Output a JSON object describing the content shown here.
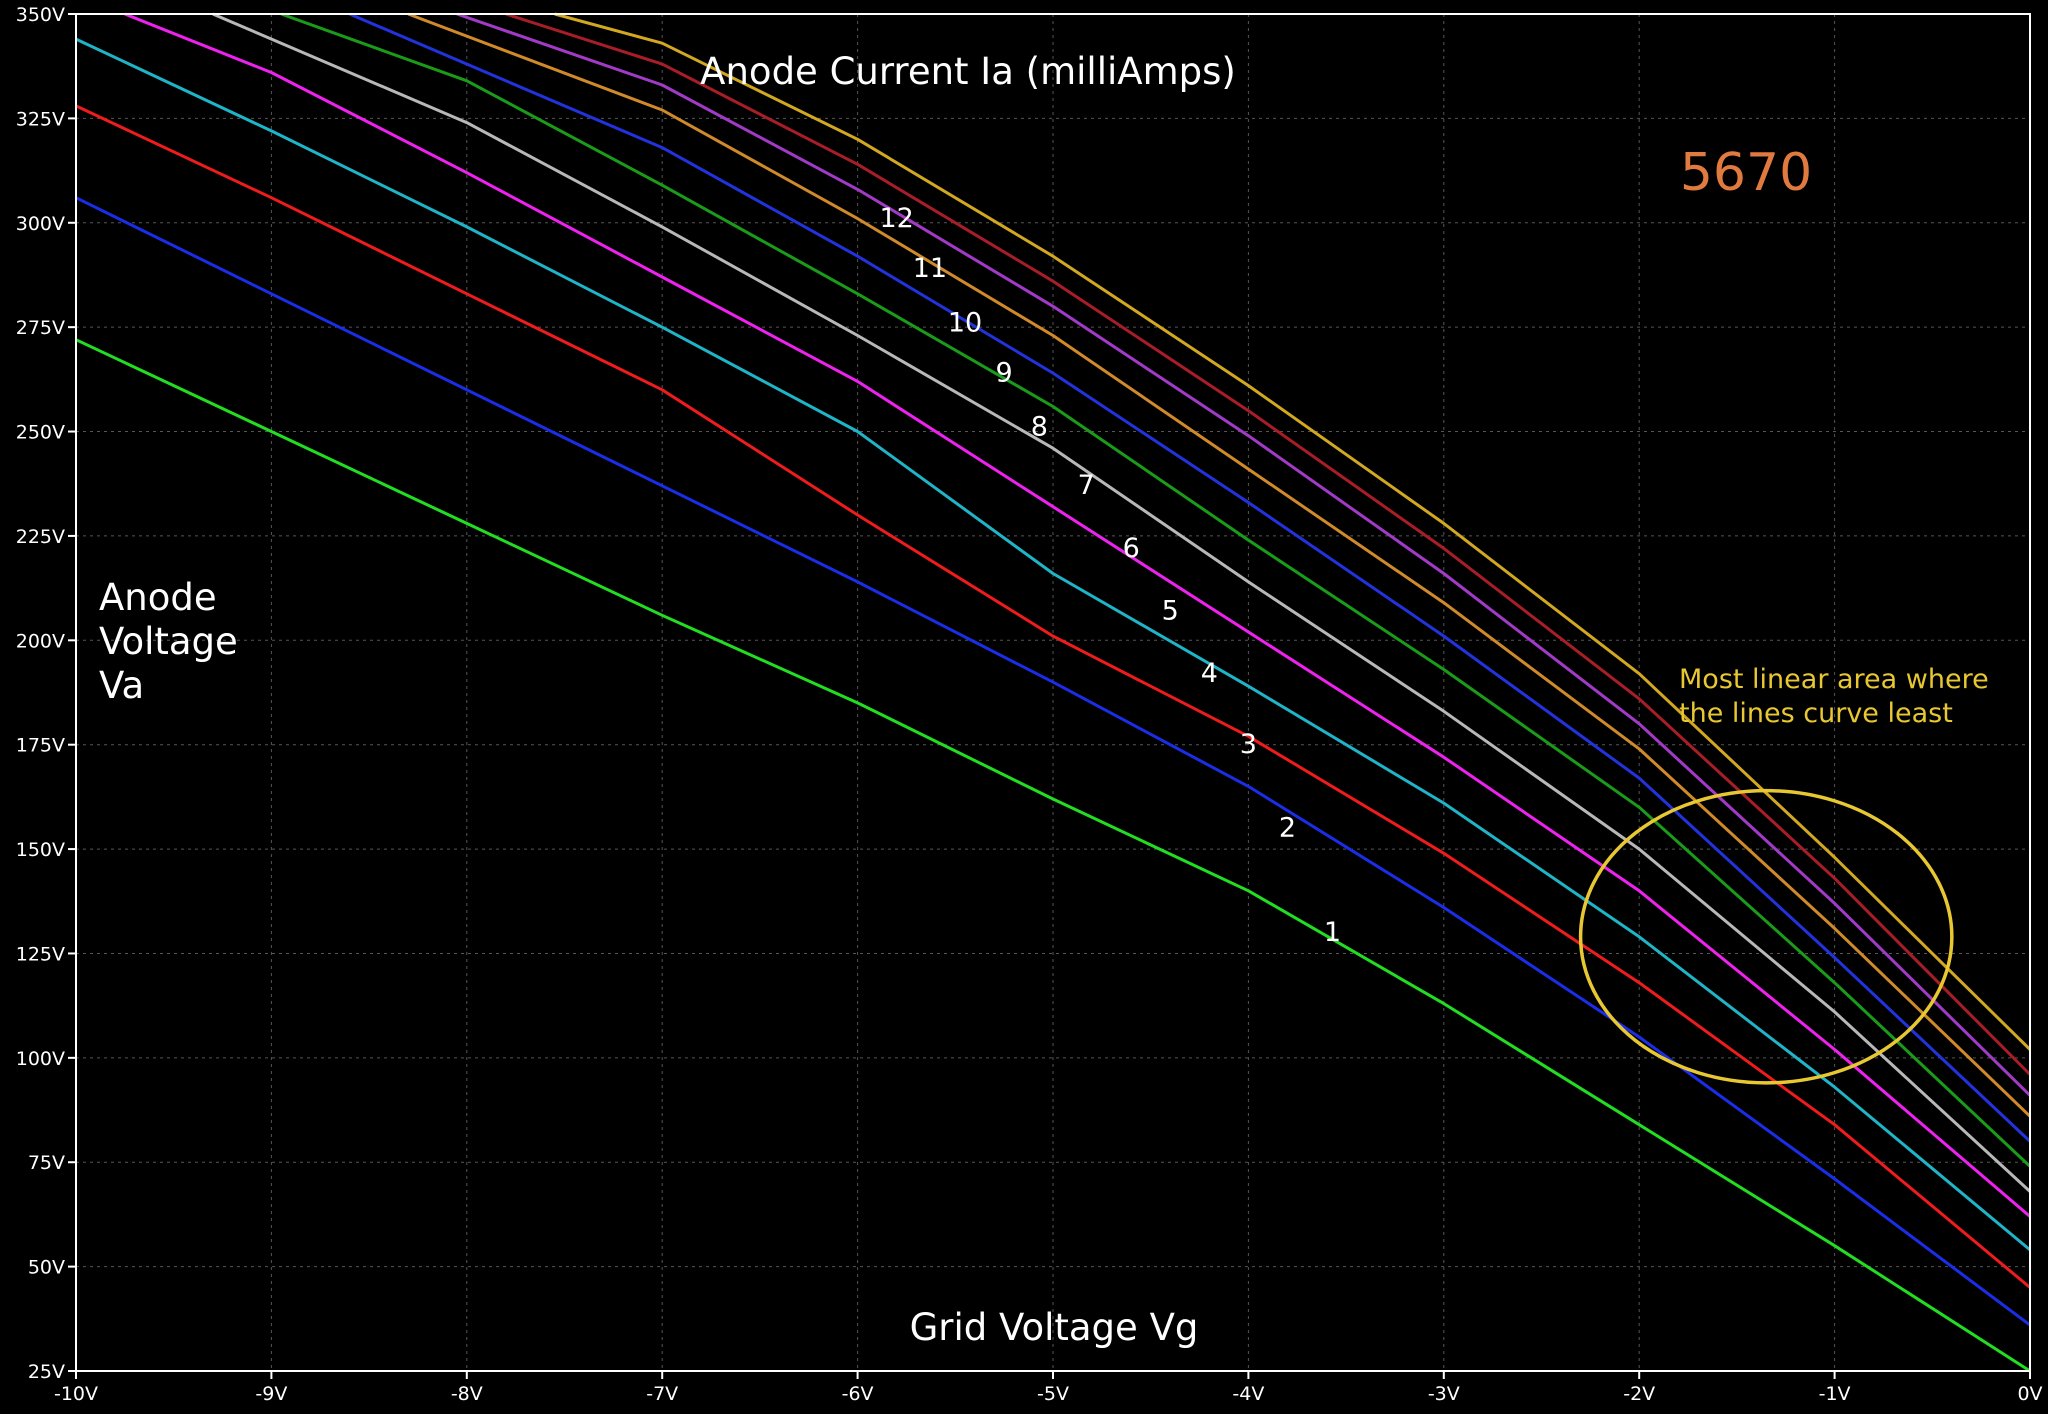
{
  "chart_data": {
    "type": "line",
    "title": "Anode Current Ia (milliAmps)",
    "xlabel": "Grid Voltage Vg",
    "ylabel_lines": [
      "Anode",
      "Voltage",
      "Va"
    ],
    "xlim": [
      -10,
      0
    ],
    "ylim": [
      25,
      350
    ],
    "x_ticks": [
      -10,
      -9,
      -8,
      -7,
      -6,
      -5,
      -4,
      -3,
      -2,
      -1,
      0
    ],
    "x_tick_labels": [
      "-10V",
      "-9V",
      "-8V",
      "-7V",
      "-6V",
      "-5V",
      "-4V",
      "-3V",
      "-2V",
      "-1V",
      "0V"
    ],
    "y_ticks": [
      25,
      50,
      75,
      100,
      125,
      150,
      175,
      200,
      225,
      250,
      275,
      300,
      325,
      350
    ],
    "y_tick_labels": [
      "25V",
      "50V",
      "75V",
      "100V",
      "125V",
      "150V",
      "175V",
      "200V",
      "225V",
      "250V",
      "275V",
      "300V",
      "325V",
      "350V"
    ],
    "grid": true,
    "model_label": "5670",
    "annotation": {
      "text_lines": [
        "Most linear area where",
        "the lines curve least"
      ],
      "color": "#e8c832",
      "ellipse_center": [
        -1.35,
        129
      ],
      "ellipse_radius": [
        0.95,
        35
      ]
    },
    "series": [
      {
        "label": "1",
        "color": "#22dd22",
        "label_at": [
          -3.57,
          128
        ],
        "points": [
          [
            -10,
            272
          ],
          [
            -9,
            250
          ],
          [
            -8,
            228
          ],
          [
            -7,
            206
          ],
          [
            -6,
            185
          ],
          [
            -5,
            162
          ],
          [
            -4,
            140
          ],
          [
            -3,
            113
          ],
          [
            -2,
            84
          ],
          [
            -1,
            55
          ],
          [
            0,
            25
          ]
        ]
      },
      {
        "label": "2",
        "color": "#1a2ee8",
        "label_at": [
          -3.8,
          153
        ],
        "points": [
          [
            -10,
            306
          ],
          [
            -9,
            283
          ],
          [
            -8,
            260
          ],
          [
            -7,
            237
          ],
          [
            -6,
            214
          ],
          [
            -5,
            190
          ],
          [
            -4,
            165
          ],
          [
            -3,
            136
          ],
          [
            -2,
            105
          ],
          [
            -1,
            71
          ],
          [
            0,
            36
          ]
        ]
      },
      {
        "label": "3",
        "color": "#ee1c1c",
        "label_at": [
          -4.0,
          173
        ],
        "points": [
          [
            -10,
            328
          ],
          [
            -9,
            306
          ],
          [
            -8,
            283
          ],
          [
            -7,
            260
          ],
          [
            -6,
            230
          ],
          [
            -5,
            201
          ],
          [
            -4,
            177
          ],
          [
            -3,
            149
          ],
          [
            -2,
            118
          ],
          [
            -1,
            84
          ],
          [
            0,
            45
          ]
        ]
      },
      {
        "label": "4",
        "color": "#1fb4c8",
        "label_at": [
          -4.2,
          190
        ],
        "points": [
          [
            -10,
            344
          ],
          [
            -9,
            322
          ],
          [
            -8,
            299
          ],
          [
            -7,
            275
          ],
          [
            -6,
            250
          ],
          [
            -5,
            216
          ],
          [
            -4,
            189
          ],
          [
            -3,
            161
          ],
          [
            -2,
            129
          ],
          [
            -1,
            93
          ],
          [
            0,
            54
          ]
        ]
      },
      {
        "label": "5",
        "color": "#ee22ee",
        "label_at": [
          -4.4,
          205
        ],
        "points": [
          [
            -9.75,
            350
          ],
          [
            -9,
            336
          ],
          [
            -8,
            312
          ],
          [
            -7,
            287
          ],
          [
            -6,
            262
          ],
          [
            -5,
            232
          ],
          [
            -4,
            202
          ],
          [
            -3,
            172
          ],
          [
            -2,
            140
          ],
          [
            -1,
            102
          ],
          [
            0,
            62
          ]
        ]
      },
      {
        "label": "6",
        "color": "#b8b8b8",
        "label_at": [
          -4.6,
          220
        ],
        "points": [
          [
            -9.3,
            350
          ],
          [
            -8,
            324
          ],
          [
            -7,
            299
          ],
          [
            -6,
            273
          ],
          [
            -5,
            246
          ],
          [
            -4,
            214
          ],
          [
            -3,
            183
          ],
          [
            -2,
            150
          ],
          [
            -1,
            111
          ],
          [
            0,
            68
          ]
        ]
      },
      {
        "label": "7",
        "color": "#1a9c1a",
        "label_at": [
          -4.83,
          235
        ],
        "points": [
          [
            -8.95,
            350
          ],
          [
            -8,
            334
          ],
          [
            -7,
            309
          ],
          [
            -6,
            283
          ],
          [
            -5,
            256
          ],
          [
            -4,
            224
          ],
          [
            -3,
            193
          ],
          [
            -2,
            160
          ],
          [
            -1,
            118
          ],
          [
            0,
            74
          ]
        ]
      },
      {
        "label": "8",
        "color": "#2233dd",
        "label_at": [
          -5.07,
          249
        ],
        "points": [
          [
            -8.6,
            350
          ],
          [
            -7,
            318
          ],
          [
            -6,
            292
          ],
          [
            -5,
            264
          ],
          [
            -4,
            233
          ],
          [
            -3,
            201
          ],
          [
            -2,
            167
          ],
          [
            -1,
            124
          ],
          [
            0,
            80
          ]
        ]
      },
      {
        "label": "9",
        "color": "#d08a2a",
        "label_at": [
          -5.25,
          262
        ],
        "points": [
          [
            -8.3,
            350
          ],
          [
            -7,
            327
          ],
          [
            -6,
            301
          ],
          [
            -5,
            273
          ],
          [
            -4,
            241
          ],
          [
            -3,
            209
          ],
          [
            -2,
            174
          ],
          [
            -1,
            131
          ],
          [
            0,
            86
          ]
        ]
      },
      {
        "label": "10",
        "color": "#a23ac8",
        "label_at": [
          -5.45,
          274
        ],
        "points": [
          [
            -8.05,
            350
          ],
          [
            -7,
            333
          ],
          [
            -6,
            308
          ],
          [
            -5,
            280
          ],
          [
            -4,
            249
          ],
          [
            -3,
            216
          ],
          [
            -2,
            180
          ],
          [
            -1,
            137
          ],
          [
            0,
            91
          ]
        ]
      },
      {
        "label": "11",
        "color": "#a81e28",
        "label_at": [
          -5.63,
          287
        ],
        "points": [
          [
            -7.8,
            350
          ],
          [
            -7,
            338
          ],
          [
            -6,
            314
          ],
          [
            -5,
            286
          ],
          [
            -4,
            255
          ],
          [
            -3,
            222
          ],
          [
            -2,
            186
          ],
          [
            -1,
            143
          ],
          [
            0,
            96
          ]
        ]
      },
      {
        "label": "12",
        "color": "#d2a820",
        "label_at": [
          -5.8,
          299
        ],
        "points": [
          [
            -7.55,
            350
          ],
          [
            -7,
            343
          ],
          [
            -6,
            320
          ],
          [
            -5,
            292
          ],
          [
            -4,
            261
          ],
          [
            -3,
            228
          ],
          [
            -2,
            192
          ],
          [
            -1,
            148
          ],
          [
            0,
            102
          ]
        ]
      }
    ]
  }
}
